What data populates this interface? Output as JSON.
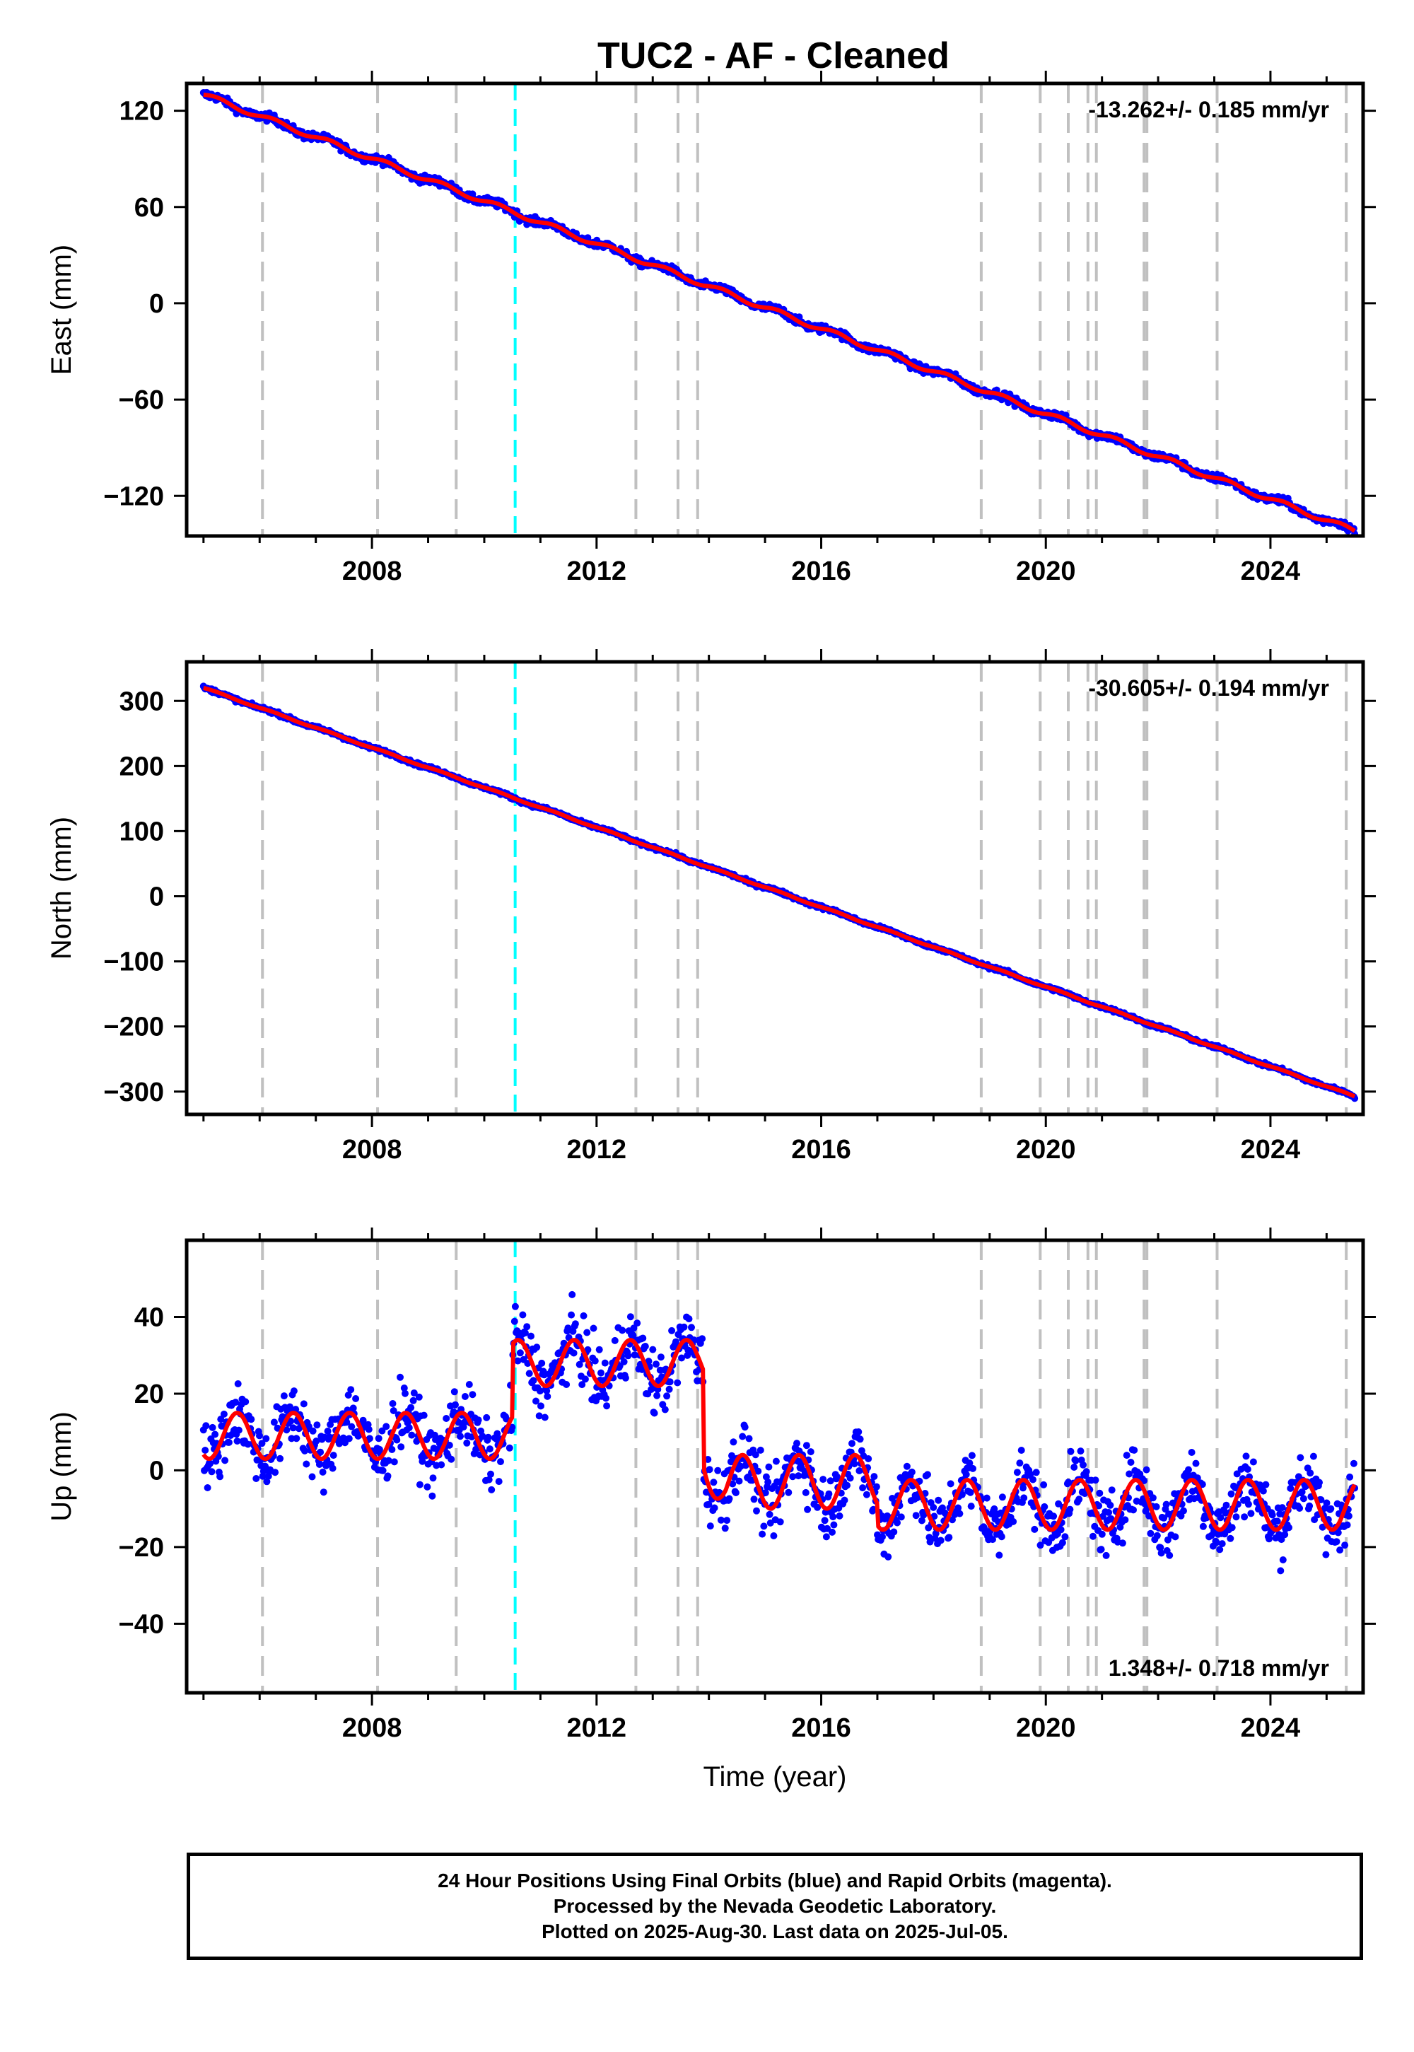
{
  "title": "TUC2  - AF - Cleaned",
  "footer": {
    "line1": "24 Hour Positions Using Final Orbits (blue) and Rapid Orbits (magenta).",
    "line2": "Processed by the Nevada Geodetic Laboratory.",
    "line3": "Plotted on 2025-Aug-30. Last data on 2025-Jul-05."
  },
  "colors": {
    "data_points": "#0000ff",
    "model_fit": "#ff0000",
    "step_event_line": "#00ffff",
    "equipment_change_line": "#c0c0c0"
  },
  "chart_data": [
    {
      "type": "scatter",
      "panel": "east",
      "title": "",
      "xlabel": "",
      "ylabel": "East (mm)",
      "xlim": [
        2004.7,
        2025.65
      ],
      "ylim": [
        -145,
        137
      ],
      "x_ticks": [
        2008,
        2012,
        2016,
        2020,
        2024
      ],
      "y_ticks": [
        -120,
        -60,
        0,
        60,
        120
      ],
      "y_tick_labels": [
        "−120",
        "−60",
        "0",
        "60",
        "120"
      ],
      "rate_label": "-13.262+/- 0.185 mm/yr",
      "rate_label_position": "top-right",
      "grid": false,
      "series": [
        {
          "name": "",
          "model": "trend",
          "start": 2005.0,
          "end": 2025.5,
          "offset_at_start": 130,
          "rate_per_year": -13.262,
          "seasonal_amplitude": 1.5,
          "noise": 1.8
        }
      ]
    },
    {
      "type": "scatter",
      "panel": "north",
      "title": "",
      "xlabel": "",
      "ylabel": "North (mm)",
      "xlim": [
        2004.7,
        2025.65
      ],
      "ylim": [
        -335,
        360
      ],
      "x_ticks": [
        2008,
        2012,
        2016,
        2020,
        2024
      ],
      "y_ticks": [
        -300,
        -200,
        -100,
        0,
        100,
        200,
        300
      ],
      "y_tick_labels": [
        "−300",
        "−200",
        "−100",
        "0",
        "100",
        "200",
        "300"
      ],
      "rate_label": "-30.605+/- 0.194 mm/yr",
      "rate_label_position": "top-right",
      "grid": false,
      "series": [
        {
          "name": "",
          "model": "trend",
          "start": 2005.0,
          "end": 2025.5,
          "offset_at_start": 320,
          "rate_per_year": -30.605,
          "seasonal_amplitude": 1.0,
          "noise": 2.0
        }
      ]
    },
    {
      "type": "scatter",
      "panel": "up",
      "title": "",
      "xlabel": "Time (year)",
      "ylabel": "Up (mm)",
      "xlim": [
        2004.7,
        2025.65
      ],
      "ylim": [
        -58,
        60
      ],
      "x_ticks": [
        2008,
        2012,
        2016,
        2020,
        2024
      ],
      "y_ticks": [
        -40,
        -20,
        0,
        20,
        40
      ],
      "y_tick_labels": [
        "−40",
        "−20",
        "0",
        "20",
        "40"
      ],
      "rate_label": "1.348+/- 0.718 mm/yr",
      "rate_label_position": "bottom-right",
      "grid": false,
      "series": [
        {
          "name": "",
          "model": "segments",
          "start": 2005.0,
          "end": 2025.5,
          "noise": 6.0,
          "segments": [
            {
              "from": 2005.0,
              "to": 2010.5,
              "mean": 9,
              "amplitude": 6
            },
            {
              "from": 2010.5,
              "to": 2013.9,
              "mean": 28,
              "amplitude": 6
            },
            {
              "from": 2013.9,
              "to": 2017.0,
              "mean": -3,
              "amplitude": 7
            },
            {
              "from": 2017.0,
              "to": 2025.5,
              "mean": -9,
              "amplitude": 6.5
            }
          ]
        }
      ]
    }
  ],
  "event_lines": {
    "step": [
      2010.55
    ],
    "equipment": [
      2006.05,
      2008.1,
      2009.5,
      2012.7,
      2013.45,
      2013.8,
      2018.85,
      2019.9,
      2020.4,
      2020.75,
      2020.9,
      2021.75,
      2021.8,
      2023.05,
      2025.35
    ]
  }
}
